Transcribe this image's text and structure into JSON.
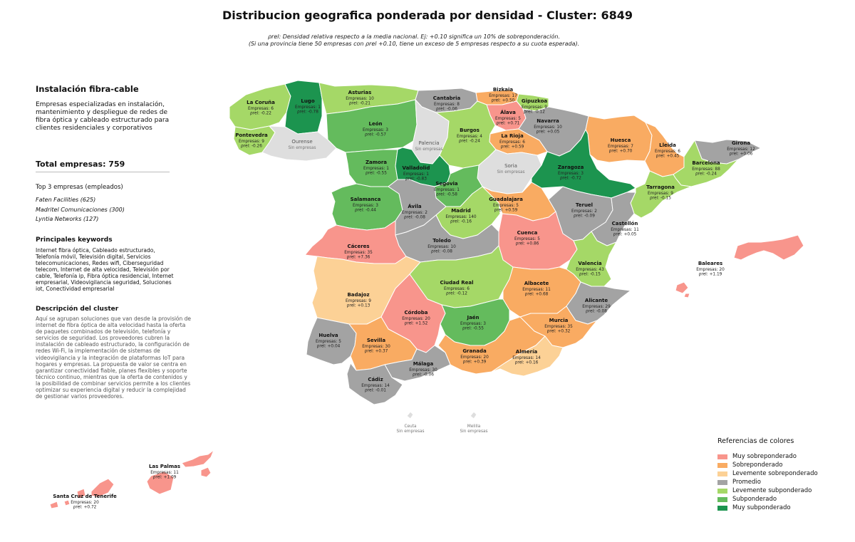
{
  "title": "Distribucion geografica ponderada por densidad - Cluster: 6849",
  "subtitle": {
    "line1": "ρrel: Densidad relativa respecto a la media nacional. Ej: +0.10 significa un 10% de sobreponderación.",
    "line2": "(Si una provincia tiene 50 empresas con ρrel +0.10, tiene un exceso de 5 empresas respecto a su cuota esperada)."
  },
  "sidebar": {
    "cluster_name": "Instalación fibra-cable",
    "cluster_summary": "Empresas especializadas en instalación, mantenimiento y despliegue de redes de fibra óptica y cableado estructurado para clientes residenciales y corporativos",
    "total_label": "Total empresas: 759",
    "top3_title": "Top 3 empresas (empleados)",
    "top3": [
      "Faten Facilities (625)",
      "Madritel Comunicaciones (300)",
      "Lyntia Networks (127)"
    ],
    "keywords_title": "Principales keywords",
    "keywords_text": "Internet fibra óptica, Cableado estructurado, Telefonía móvil, Televisión digital, Servicios telecomunicaciones, Redes wifi, Ciberseguridad telecom, Internet de alta velocidad, Televisión por cable, Telefonía ip, Fibra óptica residencial, Internet empresarial, Videovigilancia seguridad, Soluciones iot, Conectividad empresarial",
    "description_title": "Descripción del cluster",
    "description_text": "Aquí se agrupan soluciones que van desde la provisión de internet de fibra óptica de alta velocidad hasta la oferta de paquetes combinados de televisión, telefonía y servicios de seguridad. Los proveedores cubren la instalación de cableado estructurado, la configuración de redes Wi-Fi, la implementación de sistemas de videovigilancia y la integración de plataformas IoT para hogares y empresas. La propuesta de valor se centra en garantizar conectividad fiable, planes flexibles y soporte técnico continuo, mientras que la oferta de contenidos y la posibilidad de combinar servicios permite a los clientes optimizar su experiencia digital y reducir la complejidad de gestionar varios proveedores."
  },
  "colors": {
    "muy_sobre": "#f8958c",
    "sobre": "#f9ab62",
    "lev_sobre": "#fcd196",
    "promedio": "#a3a3a3",
    "lev_sub": "#a5d867",
    "sub": "#64bb5d",
    "muy_sub": "#1c944f",
    "sin": "#dedede"
  },
  "legend": {
    "title": "Referencias de colores",
    "items": [
      {
        "label": "Muy sobreponderado",
        "color": "#f8958c"
      },
      {
        "label": "Sobreponderado",
        "color": "#f9ab62"
      },
      {
        "label": "Levemente sobreponderado",
        "color": "#fcd196"
      },
      {
        "label": "Promedio",
        "color": "#a3a3a3"
      },
      {
        "label": "Levemente subponderado",
        "color": "#a5d867"
      },
      {
        "label": "Subponderado",
        "color": "#64bb5d"
      },
      {
        "label": "Muy subponderado",
        "color": "#1c944f"
      }
    ]
  },
  "provinces": [
    {
      "name": "La Coruña",
      "empresas": "Empresas: 6",
      "rho": "ρrel: -0.22",
      "cat": "lev_sub"
    },
    {
      "name": "Lugo",
      "empresas": "Empresas: 1",
      "rho": "ρrel: -0.78",
      "cat": "muy_sub"
    },
    {
      "name": "Asturias",
      "empresas": "Empresas: 10",
      "rho": "ρrel: -0.21",
      "cat": "lev_sub"
    },
    {
      "name": "Cantabria",
      "empresas": "Empresas: 8",
      "rho": "ρrel: -0.06",
      "cat": "promedio"
    },
    {
      "name": "Bizkaia",
      "empresas": "Empresas: 17",
      "rho": "ρrel: +0.50",
      "cat": "sobre"
    },
    {
      "name": "Gipuzkoa",
      "empresas": "Empresas: 9",
      "rho": "ρrel: -0.12",
      "cat": "lev_sub"
    },
    {
      "name": "Álava",
      "empresas": "Empresas: 5",
      "rho": "ρrel: +0.71",
      "cat": "muy_sobre"
    },
    {
      "name": "Navarra",
      "empresas": "Empresas: 10",
      "rho": "ρrel: +0.05",
      "cat": "promedio"
    },
    {
      "name": "Pontevedra",
      "empresas": "Empresas: 9",
      "rho": "ρrel: -0.26",
      "cat": "lev_sub"
    },
    {
      "name": "Ourense",
      "empresas": "Sin empresas",
      "rho": "",
      "cat": "sin"
    },
    {
      "name": "León",
      "empresas": "Empresas: 3",
      "rho": "ρrel: -0.57",
      "cat": "sub"
    },
    {
      "name": "Palencia",
      "empresas": "Sin empresas",
      "rho": "",
      "cat": "sin"
    },
    {
      "name": "Burgos",
      "empresas": "Empresas: 4",
      "rho": "ρrel: -0.24",
      "cat": "lev_sub"
    },
    {
      "name": "La Rioja",
      "empresas": "Empresas: 6",
      "rho": "ρrel: +0.59",
      "cat": "sobre"
    },
    {
      "name": "Huesca",
      "empresas": "Empresas: 7",
      "rho": "ρrel: +0.70",
      "cat": "sobre"
    },
    {
      "name": "Lleida",
      "empresas": "Empresas: 6",
      "rho": "ρrel: +0.45",
      "cat": "sobre"
    },
    {
      "name": "Girona",
      "empresas": "Empresas: 12",
      "rho": "ρrel: +0.06",
      "cat": "promedio"
    },
    {
      "name": "Barcelona",
      "empresas": "Empresas: 88",
      "rho": "ρrel: -0.24",
      "cat": "lev_sub"
    },
    {
      "name": "Zamora",
      "empresas": "Empresas: 1",
      "rho": "ρrel: -0.55",
      "cat": "sub"
    },
    {
      "name": "Valladolid",
      "empresas": "Empresas: 1",
      "rho": "ρrel: -0.83",
      "cat": "muy_sub"
    },
    {
      "name": "Soria",
      "empresas": "Sin empresas",
      "rho": "",
      "cat": "sin"
    },
    {
      "name": "Zaragoza",
      "empresas": "Empresas: 3",
      "rho": "ρrel: -0.72",
      "cat": "muy_sub"
    },
    {
      "name": "Tarragona",
      "empresas": "Empresas: 9",
      "rho": "ρrel: -0.15",
      "cat": "lev_sub"
    },
    {
      "name": "Segovia",
      "empresas": "Empresas: 1",
      "rho": "ρrel: -0.58",
      "cat": "sub"
    },
    {
      "name": "Salamanca",
      "empresas": "Empresas: 3",
      "rho": "ρrel: -0.44",
      "cat": "sub"
    },
    {
      "name": "Ávila",
      "empresas": "Empresas: 2",
      "rho": "ρrel: -0.08",
      "cat": "promedio"
    },
    {
      "name": "Madrid",
      "empresas": "Empresas: 140",
      "rho": "ρrel: -0.16",
      "cat": "lev_sub"
    },
    {
      "name": "Guadalajara",
      "empresas": "Empresas: 5",
      "rho": "ρrel: +0.59",
      "cat": "sobre"
    },
    {
      "name": "Teruel",
      "empresas": "Empresas: 2",
      "rho": "ρrel: -0.09",
      "cat": "promedio"
    },
    {
      "name": "Castellón",
      "empresas": "Empresas: 11",
      "rho": "ρrel: +0.05",
      "cat": "promedio"
    },
    {
      "name": "Cáceres",
      "empresas": "Empresas: 35",
      "rho": "ρrel: +7.36",
      "cat": "muy_sobre"
    },
    {
      "name": "Toledo",
      "empresas": "Empresas: 10",
      "rho": "ρrel: -0.08",
      "cat": "promedio"
    },
    {
      "name": "Cuenca",
      "empresas": "Empresas: 5",
      "rho": "ρrel: +0.86",
      "cat": "muy_sobre"
    },
    {
      "name": "Valencia",
      "empresas": "Empresas: 43",
      "rho": "ρrel: -0.15",
      "cat": "lev_sub"
    },
    {
      "name": "Baleares",
      "empresas": "Empresas: 20",
      "rho": "ρrel: +1.19",
      "cat": "muy_sobre"
    },
    {
      "name": "Badajoz",
      "empresas": "Empresas: 9",
      "rho": "ρrel: +0.13",
      "cat": "lev_sobre"
    },
    {
      "name": "Ciudad Real",
      "empresas": "Empresas: 6",
      "rho": "ρrel: -0.12",
      "cat": "lev_sub"
    },
    {
      "name": "Albacete",
      "empresas": "Empresas: 11",
      "rho": "ρrel: +0.68",
      "cat": "sobre"
    },
    {
      "name": "Alicante",
      "empresas": "Empresas: 29",
      "rho": "ρrel: -0.08",
      "cat": "promedio"
    },
    {
      "name": "Córdoba",
      "empresas": "Empresas: 20",
      "rho": "ρrel: +1.52",
      "cat": "muy_sobre"
    },
    {
      "name": "Jaén",
      "empresas": "Empresas: 3",
      "rho": "ρrel: -0.55",
      "cat": "sub"
    },
    {
      "name": "Murcia",
      "empresas": "Empresas: 35",
      "rho": "ρrel: +0.32",
      "cat": "sobre"
    },
    {
      "name": "Huelva",
      "empresas": "Empresas: 5",
      "rho": "ρrel: +0.04",
      "cat": "promedio"
    },
    {
      "name": "Sevilla",
      "empresas": "Empresas: 30",
      "rho": "ρrel: +0.37",
      "cat": "sobre"
    },
    {
      "name": "Granada",
      "empresas": "Empresas: 20",
      "rho": "ρrel: +0.39",
      "cat": "sobre"
    },
    {
      "name": "Almería",
      "empresas": "Empresas: 14",
      "rho": "ρrel: +0.16",
      "cat": "lev_sobre"
    },
    {
      "name": "Málaga",
      "empresas": "Empresas: 30",
      "rho": "ρrel: -0.06",
      "cat": "promedio"
    },
    {
      "name": "Cádiz",
      "empresas": "Empresas: 14",
      "rho": "ρrel: -0.01",
      "cat": "promedio"
    },
    {
      "name": "Ceuta",
      "empresas": "Sin empresas",
      "rho": "",
      "cat": "sin"
    },
    {
      "name": "Melilla",
      "empresas": "Sin empresas",
      "rho": "",
      "cat": "sin"
    },
    {
      "name": "Las Palmas",
      "empresas": "Empresas: 11",
      "rho": "ρrel: +1.09",
      "cat": "muy_sobre"
    },
    {
      "name": "Santa Cruz de Tenerife",
      "empresas": "Empresas: 20",
      "rho": "ρrel: +0.72",
      "cat": "muy_sobre"
    }
  ]
}
